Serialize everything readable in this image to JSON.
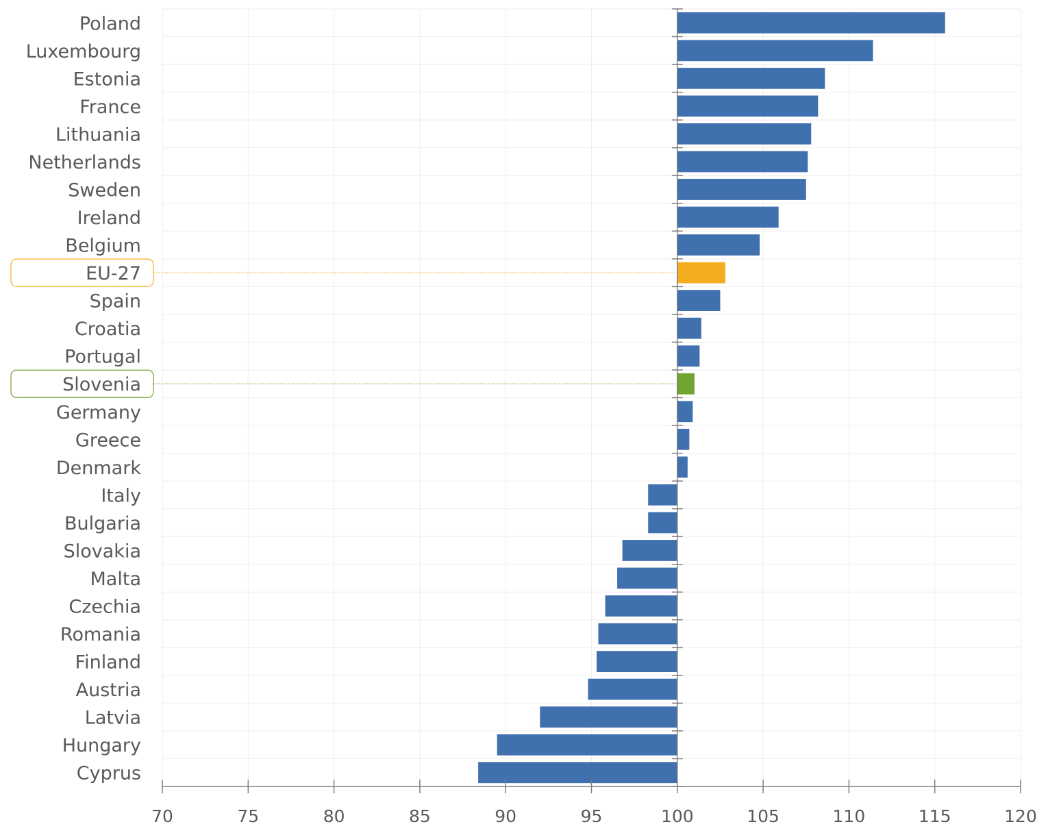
{
  "chart_data": {
    "type": "bar",
    "orientation": "horizontal",
    "baseline": 100,
    "xlim": [
      70,
      120
    ],
    "x_ticks": [
      70,
      75,
      80,
      85,
      90,
      95,
      100,
      105,
      110,
      115,
      120
    ],
    "grid": true,
    "categories": [
      "Poland",
      "Luxembourg",
      "Estonia",
      "France",
      "Lithuania",
      "Netherlands",
      "Sweden",
      "Ireland",
      "Belgium",
      "EU-27",
      "Spain",
      "Croatia",
      "Portugal",
      "Slovenia",
      "Germany",
      "Greece",
      "Denmark",
      "Italy",
      "Bulgaria",
      "Slovakia",
      "Malta",
      "Czechia",
      "Romania",
      "Finland",
      "Austria",
      "Latvia",
      "Hungary",
      "Cyprus"
    ],
    "values": [
      115.6,
      111.4,
      108.6,
      108.2,
      107.8,
      107.6,
      107.5,
      105.9,
      104.8,
      102.8,
      102.5,
      101.4,
      101.3,
      101.0,
      100.9,
      100.7,
      100.6,
      98.3,
      98.3,
      96.8,
      96.5,
      95.8,
      95.4,
      95.3,
      94.8,
      92.0,
      89.5,
      88.4
    ],
    "highlights": [
      {
        "category": "EU-27",
        "color": "#f5ad20"
      },
      {
        "category": "Slovenia",
        "color": "#72a22f"
      }
    ],
    "title": "",
    "xlabel": "",
    "ylabel": ""
  },
  "colors": {
    "bar": "#4070ae",
    "eu27": "#f5ad20",
    "slovenia": "#72a22f",
    "axis": "#7f7f7f",
    "grid": "#eeeeee",
    "text": "#595959"
  }
}
